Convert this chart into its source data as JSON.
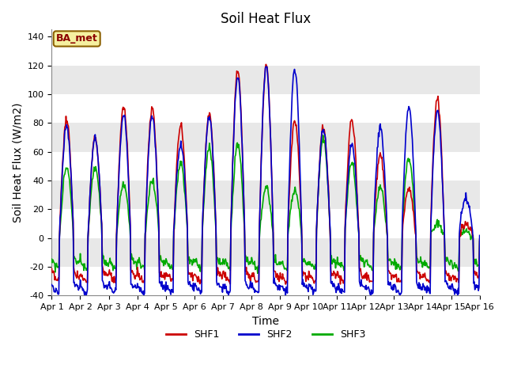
{
  "title": "Soil Heat Flux",
  "xlabel": "Time",
  "ylabel": "Soil Heat Flux (W/m2)",
  "ylim": [
    -40,
    145
  ],
  "xlim": [
    0,
    15
  ],
  "xtick_labels": [
    "Apr 1",
    "Apr 2",
    "Apr 3",
    "Apr 4",
    "Apr 5",
    "Apr 6",
    "Apr 7",
    "Apr 8",
    "Apr 9",
    "Apr 10",
    "Apr 11",
    "Apr 12",
    "Apr 13",
    "Apr 14",
    "Apr 15",
    "Apr 16"
  ],
  "ytick_values": [
    -40,
    -20,
    0,
    20,
    40,
    60,
    80,
    100,
    120,
    140
  ],
  "shf1_color": "#cc0000",
  "shf2_color": "#0000cc",
  "shf3_color": "#00aa00",
  "annotation_text": "BA_met",
  "annotation_bg": "#f5f0a0",
  "annotation_border": "#8B6000",
  "legend_labels": [
    "SHF1",
    "SHF2",
    "SHF3"
  ],
  "bg_band_color": "#e8e8e8",
  "title_fontsize": 12,
  "axis_label_fontsize": 10,
  "tick_fontsize": 8,
  "line_width": 1.2,
  "n_points_per_day": 48,
  "days": 15,
  "shf1_peaks": [
    82,
    70,
    91,
    90,
    78,
    87,
    117,
    120,
    82,
    77,
    83,
    58,
    35,
    97,
    10,
    5
  ],
  "shf2_peaks": [
    78,
    70,
    85,
    85,
    65,
    84,
    112,
    120,
    118,
    75,
    65,
    77,
    92,
    88,
    29,
    5
  ],
  "shf3_peaks": [
    49,
    49,
    37,
    40,
    52,
    63,
    65,
    35,
    33,
    69,
    52,
    35,
    55,
    10,
    5,
    5
  ],
  "shf1_night": -22,
  "shf2_night": -30,
  "shf3_night": -13
}
